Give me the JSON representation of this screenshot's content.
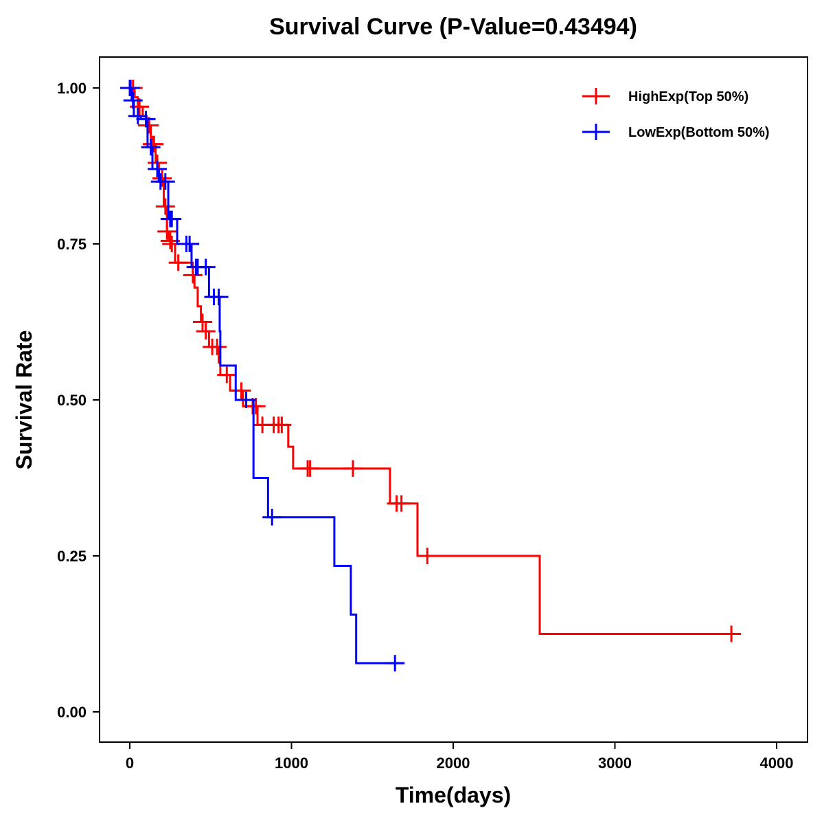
{
  "chart_data": {
    "type": "line",
    "subtype": "kaplan-meier",
    "title": "Survival Curve (P-Value=0.43494)",
    "xlabel": "Time(days)",
    "ylabel": "Survival Rate",
    "xlim": [
      -190,
      4190
    ],
    "ylim": [
      -0.048,
      1.048
    ],
    "xticks": [
      0,
      1000,
      2000,
      3000,
      4000
    ],
    "xtick_labels": [
      "0",
      "1000",
      "2000",
      "3000",
      "4000"
    ],
    "yticks": [
      0,
      0.25,
      0.5,
      0.75,
      1.0
    ],
    "ytick_labels": [
      "0.00",
      "0.25",
      "0.50",
      "0.75",
      "1.00"
    ],
    "grid": false,
    "legend_position": "top-right",
    "series": [
      {
        "name": "HighExp(Top 50%)",
        "color": "#ff0000",
        "steps": [
          [
            0,
            1.0
          ],
          [
            30,
            0.985
          ],
          [
            50,
            0.97
          ],
          [
            80,
            0.955
          ],
          [
            100,
            0.94
          ],
          [
            130,
            0.91
          ],
          [
            160,
            0.88
          ],
          [
            180,
            0.855
          ],
          [
            210,
            0.81
          ],
          [
            230,
            0.77
          ],
          [
            240,
            0.755
          ],
          [
            260,
            0.75
          ],
          [
            280,
            0.72
          ],
          [
            390,
            0.7
          ],
          [
            400,
            0.68
          ],
          [
            420,
            0.65
          ],
          [
            440,
            0.625
          ],
          [
            470,
            0.61
          ],
          [
            490,
            0.585
          ],
          [
            550,
            0.56
          ],
          [
            560,
            0.54
          ],
          [
            620,
            0.515
          ],
          [
            700,
            0.49
          ],
          [
            790,
            0.46
          ],
          [
            980,
            0.425
          ],
          [
            1010,
            0.39
          ],
          [
            1609,
            0.334
          ],
          [
            1779,
            0.25
          ],
          [
            2535,
            0.125
          ]
        ],
        "end": 3760,
        "censored": [
          20,
          60,
          110,
          120,
          140,
          150,
          170,
          200,
          220,
          230,
          250,
          260,
          300,
          390,
          450,
          470,
          510,
          540,
          600,
          690,
          760,
          780,
          820,
          890,
          920,
          940,
          1100,
          1115,
          1380,
          1650,
          1680,
          1840,
          3720
        ]
      },
      {
        "name": "LowExp(Bottom 50%)",
        "color": "#0000ff",
        "steps": [
          [
            0,
            1.0
          ],
          [
            12,
            0.98
          ],
          [
            25,
            0.955
          ],
          [
            68,
            0.95
          ],
          [
            110,
            0.905
          ],
          [
            140,
            0.87
          ],
          [
            180,
            0.85
          ],
          [
            238,
            0.79
          ],
          [
            293,
            0.75
          ],
          [
            382,
            0.713
          ],
          [
            490,
            0.665
          ],
          [
            556,
            0.61
          ],
          [
            560,
            0.555
          ],
          [
            655,
            0.5
          ],
          [
            765,
            0.375
          ],
          [
            855,
            0.312
          ],
          [
            1265,
            0.234
          ],
          [
            1367,
            0.156
          ],
          [
            1400,
            0.078
          ]
        ],
        "end": 1690,
        "censored": [
          0,
          5,
          20,
          50,
          100,
          130,
          170,
          190,
          220,
          250,
          260,
          350,
          370,
          410,
          420,
          470,
          520,
          550,
          720,
          880,
          1640
        ]
      }
    ]
  }
}
